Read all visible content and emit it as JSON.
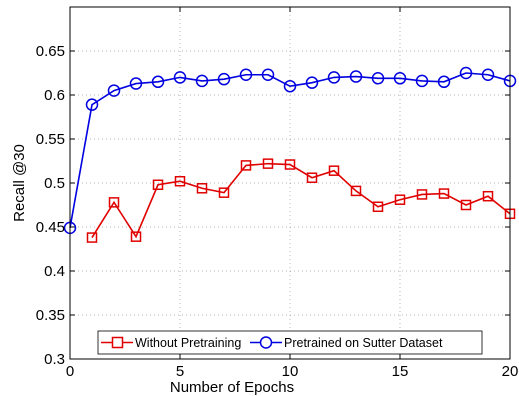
{
  "chart_data": {
    "type": "line",
    "title": "",
    "xlabel": "Number of Epochs",
    "ylabel": "Recall @30",
    "xlim": [
      0,
      20
    ],
    "ylim": [
      0.3,
      0.7
    ],
    "x_ticks": [
      0,
      5,
      10,
      15,
      20
    ],
    "x_tick_labels": [
      "0",
      "5",
      "10",
      "15",
      "20"
    ],
    "y_ticks": [
      0.3,
      0.35,
      0.4,
      0.45,
      0.5,
      0.55,
      0.6,
      0.65
    ],
    "y_tick_labels": [
      "0.3",
      "0.35",
      "0.4",
      "0.45",
      "0.5",
      "0.55",
      "0.6",
      "0.65"
    ],
    "grid": true,
    "legend_position": "bottom",
    "series": [
      {
        "name": "Without Pretraining",
        "color": "#e00000",
        "marker": "square",
        "x": [
          1,
          2,
          3,
          4,
          5,
          6,
          7,
          8,
          9,
          10,
          11,
          12,
          13,
          14,
          15,
          16,
          17,
          18,
          19,
          20
        ],
        "values": [
          0.438,
          0.478,
          0.439,
          0.498,
          0.502,
          0.494,
          0.489,
          0.52,
          0.522,
          0.521,
          0.506,
          0.514,
          0.491,
          0.473,
          0.481,
          0.487,
          0.488,
          0.475,
          0.485,
          0.465
        ]
      },
      {
        "name": "Pretrained on Sutter Dataset",
        "color": "#0000e0",
        "marker": "circle",
        "x": [
          0,
          1,
          2,
          3,
          4,
          5,
          6,
          7,
          8,
          9,
          10,
          11,
          12,
          13,
          14,
          15,
          16,
          17,
          18,
          19,
          20
        ],
        "values": [
          0.449,
          0.589,
          0.605,
          0.613,
          0.615,
          0.62,
          0.616,
          0.618,
          0.623,
          0.623,
          0.61,
          0.614,
          0.62,
          0.621,
          0.619,
          0.619,
          0.616,
          0.615,
          0.625,
          0.623,
          0.616
        ]
      }
    ]
  }
}
